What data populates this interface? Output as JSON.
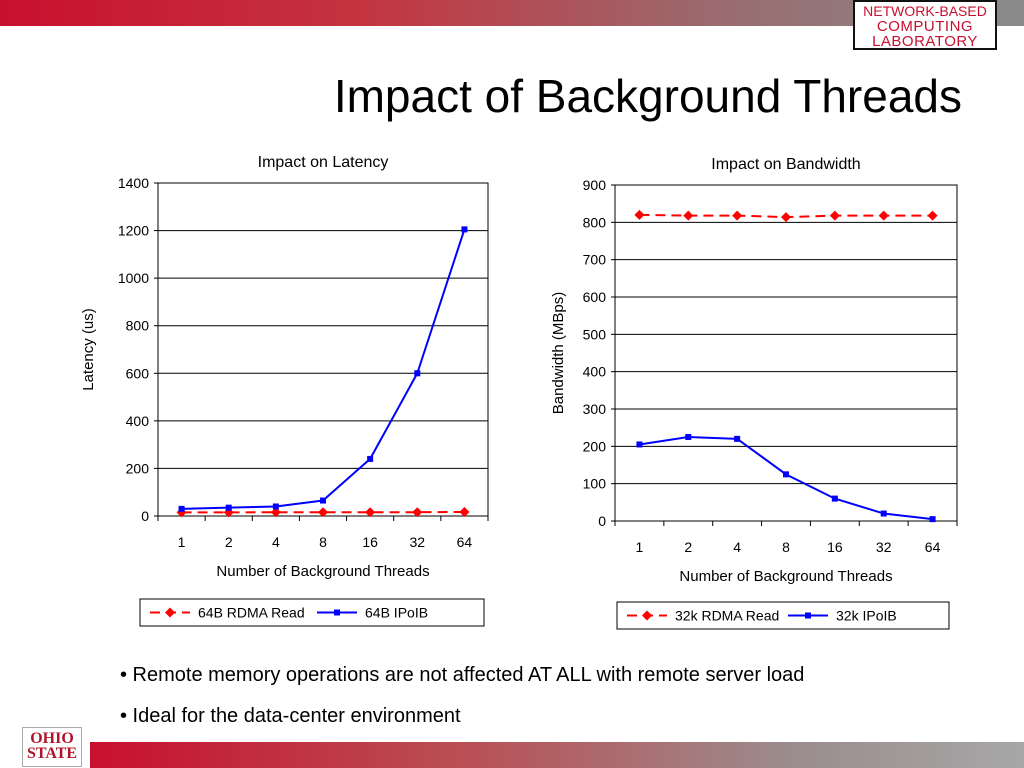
{
  "slide": {
    "title": "Impact of Background Threads",
    "lab_logo": [
      "NETWORK-BASED",
      "COMPUTING",
      "LABORATORY"
    ],
    "osu_logo": [
      "OHIO",
      "STATE"
    ],
    "bullets": [
      "• Remote memory operations are not affected AT ALL with remote server load",
      "• Ideal for the data-center environment"
    ],
    "colors": {
      "accent_red": "#c8102e",
      "series_red": "#ff0000",
      "series_blue": "#0000ff"
    }
  },
  "chart_data": [
    {
      "type": "line",
      "title": "Impact on Latency",
      "xlabel": "Number of Background Threads",
      "ylabel": "Latency (us)",
      "categories": [
        "1",
        "2",
        "4",
        "8",
        "16",
        "32",
        "64"
      ],
      "ylim": [
        0,
        1400
      ],
      "yticks": [
        0,
        200,
        400,
        600,
        800,
        1000,
        1200,
        1400
      ],
      "grid": true,
      "legend": "bottom",
      "series": [
        {
          "name": "64B RDMA Read",
          "values": [
            15,
            15,
            16,
            16,
            16,
            16,
            17
          ],
          "color": "#ff0000",
          "marker": "diamond",
          "dash": true
        },
        {
          "name": "64B IPoIB",
          "values": [
            30,
            35,
            40,
            65,
            240,
            600,
            1205
          ],
          "color": "#0000ff",
          "marker": "square",
          "dash": false
        }
      ]
    },
    {
      "type": "line",
      "title": "Impact on Bandwidth",
      "xlabel": "Number of Background Threads",
      "ylabel": "Bandwidth (MBps)",
      "categories": [
        "1",
        "2",
        "4",
        "8",
        "16",
        "32",
        "64"
      ],
      "ylim": [
        0,
        900
      ],
      "yticks": [
        0,
        100,
        200,
        300,
        400,
        500,
        600,
        700,
        800,
        900
      ],
      "grid": true,
      "legend": "bottom",
      "series": [
        {
          "name": "32k RDMA Read",
          "values": [
            820,
            818,
            818,
            814,
            818,
            818,
            818
          ],
          "color": "#ff0000",
          "marker": "diamond",
          "dash": true
        },
        {
          "name": "32k IPoIB",
          "values": [
            205,
            225,
            220,
            125,
            60,
            20,
            5
          ],
          "color": "#0000ff",
          "marker": "square",
          "dash": false
        }
      ]
    }
  ]
}
